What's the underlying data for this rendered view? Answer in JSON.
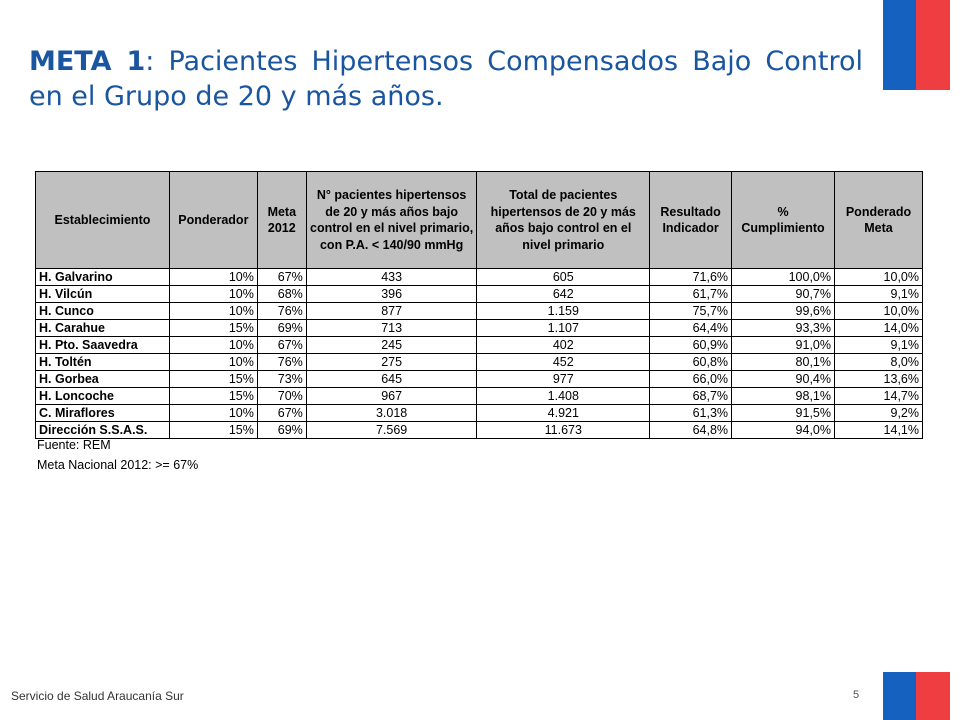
{
  "title": {
    "bold": "META 1",
    "rest": ": Pacientes Hipertensos Compensados Bajo Control en el Grupo de 20 y más años."
  },
  "table": {
    "headers": [
      "Establecimiento",
      "Ponderador",
      "Meta 2012",
      "N° pacientes hipertensos de 20 y más años bajo control en el nivel primario, con P.A. < 140/90 mmHg",
      "Total de pacientes hipertensos de 20 y más años bajo control en el nivel primario",
      "Resultado Indicador",
      "% Cumplimiento",
      "Ponderado Meta"
    ],
    "rows": [
      [
        "H. Galvarino",
        "10%",
        "67%",
        "433",
        "605",
        "71,6%",
        "100,0%",
        "10,0%"
      ],
      [
        "H. Vilcún",
        "10%",
        "68%",
        "396",
        "642",
        "61,7%",
        "90,7%",
        "9,1%"
      ],
      [
        "H. Cunco",
        "10%",
        "76%",
        "877",
        "1.159",
        "75,7%",
        "99,6%",
        "10,0%"
      ],
      [
        "H. Carahue",
        "15%",
        "69%",
        "713",
        "1.107",
        "64,4%",
        "93,3%",
        "14,0%"
      ],
      [
        "H. Pto. Saavedra",
        "10%",
        "67%",
        "245",
        "402",
        "60,9%",
        "91,0%",
        "9,1%"
      ],
      [
        "H. Toltén",
        "10%",
        "76%",
        "275",
        "452",
        "60,8%",
        "80,1%",
        "8,0%"
      ],
      [
        "H. Gorbea",
        "15%",
        "73%",
        "645",
        "977",
        "66,0%",
        "90,4%",
        "13,6%"
      ],
      [
        "H. Loncoche",
        "15%",
        "70%",
        "967",
        "1.408",
        "68,7%",
        "98,1%",
        "14,7%"
      ],
      [
        "C. Miraflores",
        "10%",
        "67%",
        "3.018",
        "4.921",
        "61,3%",
        "91,5%",
        "9,2%"
      ],
      [
        "Dirección S.S.A.S.",
        "15%",
        "69%",
        "7.569",
        "11.673",
        "64,8%",
        "94,0%",
        "14,1%"
      ]
    ]
  },
  "notes": {
    "source": "Fuente: REM",
    "national_goal": "Meta Nacional 2012: >= 67%"
  },
  "footer": {
    "organization": "Servicio de Salud Araucanía Sur",
    "page_number": "5"
  },
  "colors": {
    "title": "#1a55a0",
    "flag_blue": "#1461c0",
    "flag_red": "#ef3e42",
    "header_bg": "#c0c0c0"
  }
}
